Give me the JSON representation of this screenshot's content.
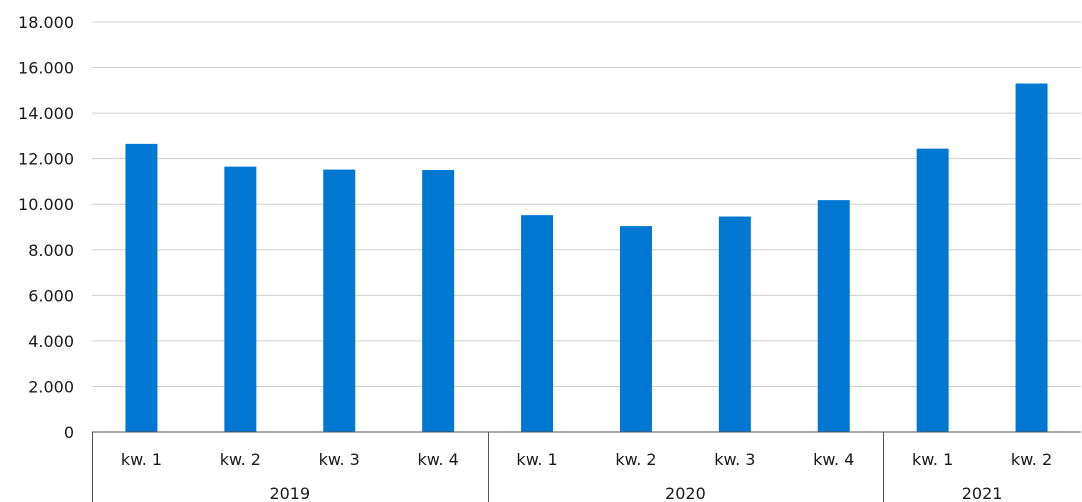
{
  "chart_data": {
    "type": "bar",
    "title": "",
    "xlabel": "",
    "ylabel": "",
    "ylim": [
      0,
      18000
    ],
    "y_ticks": [
      0,
      2000,
      4000,
      6000,
      8000,
      10000,
      12000,
      14000,
      16000,
      18000
    ],
    "y_tick_labels": [
      "0",
      "2.000",
      "4.000",
      "6.000",
      "8.000",
      "10.000",
      "12.000",
      "14.000",
      "16.000",
      "18.000"
    ],
    "categories": [
      "kw. 1",
      "kw. 2",
      "kw. 3",
      "kw. 4",
      "kw. 1",
      "kw. 2",
      "kw. 3",
      "kw. 4",
      "kw. 1",
      "kw. 2"
    ],
    "groups": [
      {
        "label": "2019",
        "count": 4
      },
      {
        "label": "2020",
        "count": 4
      },
      {
        "label": "2021",
        "count": 2
      }
    ],
    "values": [
      12650,
      11650,
      11520,
      11500,
      9520,
      9040,
      9460,
      10180,
      12440,
      15300
    ],
    "bar_color": "#0078d2",
    "grid": true,
    "legend": "none"
  }
}
